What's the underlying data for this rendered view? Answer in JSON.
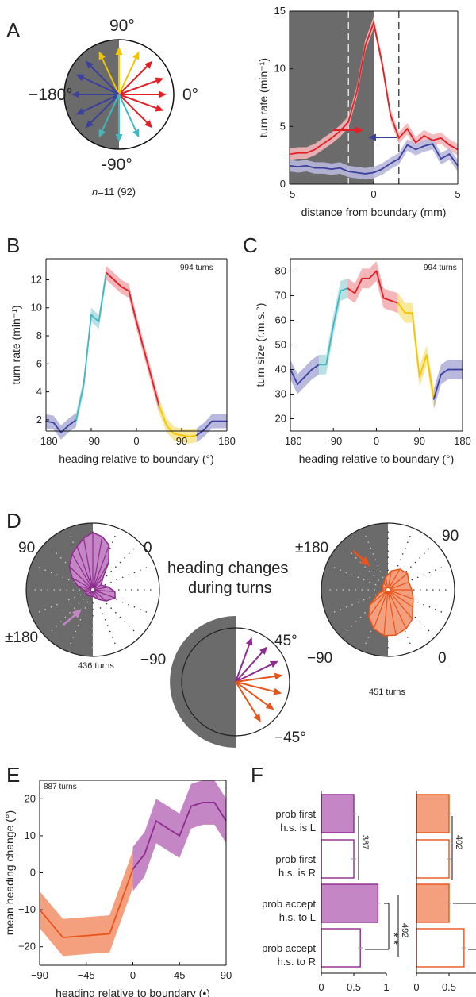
{
  "colors": {
    "red": "#e31f26",
    "red_band": "#f4b6b9",
    "blue": "#3b3f9e",
    "blue_band": "#b9b8dd",
    "cyan": "#3fb9bf",
    "cyan_band": "#b9e1e4",
    "yellow": "#f2c500",
    "yellow_band": "#f9e89a",
    "purple": "#8e2c8f",
    "purple_fill": "#c486c5",
    "orange": "#e8541b",
    "orange_fill": "#f4a07e",
    "gray": "#5f5f5f",
    "dark_region": "#6b6b6b"
  },
  "panels": {
    "A": {
      "label": "A",
      "compass": {
        "label_90": "90°",
        "label_0": "0°",
        "label_neg180": "−180°",
        "label_neg90": "-90°",
        "caption": "n=11 (92)",
        "arrows": [
          {
            "angle": 0,
            "color": "red"
          },
          {
            "angle": 20,
            "color": "red"
          },
          {
            "angle": -20,
            "color": "red"
          },
          {
            "angle": 45,
            "color": "red"
          },
          {
            "angle": -45,
            "color": "red"
          },
          {
            "angle": 90,
            "color": "yellow"
          },
          {
            "angle": 65,
            "color": "yellow"
          },
          {
            "angle": 115,
            "color": "yellow"
          },
          {
            "angle": 180,
            "color": "blue"
          },
          {
            "angle": 155,
            "color": "blue"
          },
          {
            "angle": 205,
            "color": "blue"
          },
          {
            "angle": 135,
            "color": "blue"
          },
          {
            "angle": 225,
            "color": "blue"
          },
          {
            "angle": 270,
            "color": "cyan"
          },
          {
            "angle": 245,
            "color": "cyan"
          },
          {
            "angle": 295,
            "color": "cyan"
          }
        ]
      }
    },
    "B": {
      "label": "B",
      "note": "994 turns"
    },
    "C": {
      "label": "C",
      "note": "994 turns"
    },
    "D": {
      "label": "D",
      "title_line1": "heading changes",
      "title_line2": "during turns",
      "left": {
        "label_top_left": "90",
        "label_top_right": "0",
        "label_bottom_left": "±180",
        "label_bottom_right": "−90",
        "turns": "436 turns"
      },
      "right": {
        "label_top_left": "±180",
        "label_top_right": "90",
        "label_bottom_left": "−90",
        "label_bottom_right": "0",
        "turns": "451 turns"
      },
      "small": {
        "label_pos": "45°",
        "label_neg": "−45°"
      }
    },
    "E": {
      "label": "E",
      "note": "887 turns"
    },
    "F": {
      "label": "F",
      "row_labels": [
        [
          "prob first",
          "h.s. is L"
        ],
        [
          "prob first",
          "h.s. is R"
        ],
        [
          "prob accept",
          "h.s. to L"
        ],
        [
          "prob accept",
          "h.s. to R"
        ]
      ],
      "n_left_top": "387",
      "n_left_bottom": "492",
      "n_right_top": "402",
      "stars": "* *",
      "x_ticks_left": [
        "0",
        "0.5",
        "1"
      ],
      "x_ticks_right": [
        "0",
        "0.5"
      ]
    }
  },
  "chart_data": [
    {
      "type": "line",
      "panel": "A-right",
      "xlabel": "distance from boundary (mm)",
      "ylabel": "turn rate (min⁻¹)",
      "xlim": [
        -5,
        5
      ],
      "ylim": [
        0,
        15
      ],
      "x_ticks": [
        -5,
        0,
        5
      ],
      "y_ticks": [
        0,
        5,
        10,
        15
      ],
      "dashed_lines_x": [
        -1.5,
        1.5
      ],
      "series": [
        {
          "color": "red",
          "x": [
            -5,
            -4.5,
            -4,
            -3.5,
            -3,
            -2.5,
            -2,
            -1.5,
            -1,
            -0.5,
            0,
            0.5,
            1,
            1.5,
            2,
            2.5,
            3,
            3.5,
            4,
            4.5,
            5
          ],
          "y": [
            2.6,
            2.7,
            2.7,
            3.0,
            3.5,
            4.0,
            4.6,
            5.4,
            8.0,
            12.0,
            14.0,
            10.5,
            6.0,
            4.0,
            4.8,
            3.6,
            4.2,
            3.8,
            4.0,
            3.4,
            3.0
          ],
          "band": 0.5
        },
        {
          "color": "blue",
          "x": [
            -5,
            -4.5,
            -4,
            -3.5,
            -3,
            -2.5,
            -2,
            -1.5,
            -1,
            -0.5,
            0,
            0.5,
            1,
            1.5,
            2,
            2.5,
            3,
            3.5,
            4,
            4.5,
            5
          ],
          "y": [
            1.6,
            1.5,
            1.6,
            1.4,
            1.4,
            1.3,
            1.4,
            1.1,
            1.0,
            0.9,
            1.0,
            1.3,
            1.8,
            2.2,
            3.4,
            3.0,
            3.3,
            3.5,
            2.2,
            2.6,
            1.6
          ],
          "band": 0.5
        }
      ]
    },
    {
      "type": "line",
      "panel": "B",
      "xlabel": "heading relative to boundary (°)",
      "ylabel": "turn rate (min⁻¹)",
      "xlim": [
        -180,
        180
      ],
      "ylim": [
        1.2,
        13.5
      ],
      "x_ticks": [
        -180,
        -90,
        0,
        90,
        180
      ],
      "y_ticks": [
        2,
        4,
        6,
        8,
        10,
        12
      ],
      "x": [
        -180,
        -165,
        -150,
        -135,
        -120,
        -105,
        -90,
        -75,
        -60,
        -45,
        -30,
        -15,
        0,
        15,
        30,
        45,
        60,
        75,
        90,
        105,
        120,
        135,
        150,
        165,
        180
      ],
      "y": [
        1.9,
        1.8,
        1.1,
        1.6,
        2.0,
        4.5,
        9.5,
        9.0,
        12.5,
        12.0,
        11.5,
        11.2,
        9.0,
        7.0,
        5.0,
        3.0,
        1.6,
        1.0,
        0.9,
        0.8,
        0.9,
        1.3,
        1.9,
        1.9,
        1.9
      ],
      "band": 0.5,
      "segment_colors": [
        "blue",
        "cyan",
        "red",
        "yellow",
        "blue"
      ],
      "segment_breaks": [
        -120,
        -60,
        45,
        120
      ]
    },
    {
      "type": "line",
      "panel": "C",
      "xlabel": "heading relative to boundary (°)",
      "ylabel": "turn  size (r.m.s.°)",
      "xlim": [
        -180,
        180
      ],
      "ylim": [
        15,
        85
      ],
      "x_ticks": [
        -180,
        -90,
        0,
        90,
        180
      ],
      "y_ticks": [
        20,
        30,
        40,
        50,
        60,
        70,
        80
      ],
      "x": [
        -180,
        -165,
        -150,
        -135,
        -120,
        -105,
        -90,
        -75,
        -60,
        -45,
        -30,
        -15,
        0,
        15,
        30,
        45,
        60,
        75,
        90,
        105,
        120,
        135,
        150,
        165,
        180
      ],
      "y": [
        40,
        34,
        37,
        40,
        42,
        42,
        58,
        72,
        73,
        71,
        77,
        77,
        80,
        69,
        68,
        67,
        63,
        63,
        37,
        46,
        28,
        38,
        40,
        40,
        40
      ],
      "band": 4,
      "segment_colors": [
        "blue",
        "cyan",
        "red",
        "yellow",
        "blue"
      ],
      "segment_breaks": [
        -120,
        -60,
        45,
        120
      ]
    },
    {
      "type": "area",
      "panel": "E",
      "xlabel": "heading relative to boundary (•)",
      "ylabel": "mean heading change (°)",
      "xlim": [
        -90,
        90
      ],
      "ylim": [
        -25,
        25
      ],
      "x_ticks": [
        -90,
        -45,
        0,
        45,
        90
      ],
      "y_ticks": [
        -20,
        -10,
        0,
        10,
        20
      ],
      "series": [
        {
          "color": "orange",
          "x": [
            -90,
            -67.5,
            -45,
            -22.5,
            0
          ],
          "y": [
            -10,
            -17.5,
            -17,
            -16.5,
            1
          ],
          "band": 5
        },
        {
          "color": "purple",
          "x": [
            0,
            11.25,
            22.5,
            45,
            56.25,
            67.5,
            78.75,
            90
          ],
          "y": [
            1,
            5,
            14,
            10,
            18,
            19,
            19,
            14
          ],
          "band": 6
        }
      ]
    },
    {
      "type": "bar",
      "panel": "F",
      "orientation": "horizontal",
      "categories": [
        "prob first h.s. is L",
        "prob first h.s. is R",
        "prob accept h.s. to L",
        "prob accept h.s. to R"
      ],
      "series": [
        {
          "color": "purple",
          "values": [
            0.5,
            0.5,
            0.87,
            0.6
          ],
          "filled": [
            true,
            false,
            true,
            false
          ]
        },
        {
          "color": "orange",
          "values": [
            0.5,
            0.5,
            0.5,
            0.73
          ],
          "filled": [
            true,
            false,
            true,
            false
          ]
        }
      ],
      "xlim": [
        0,
        1
      ]
    }
  ]
}
